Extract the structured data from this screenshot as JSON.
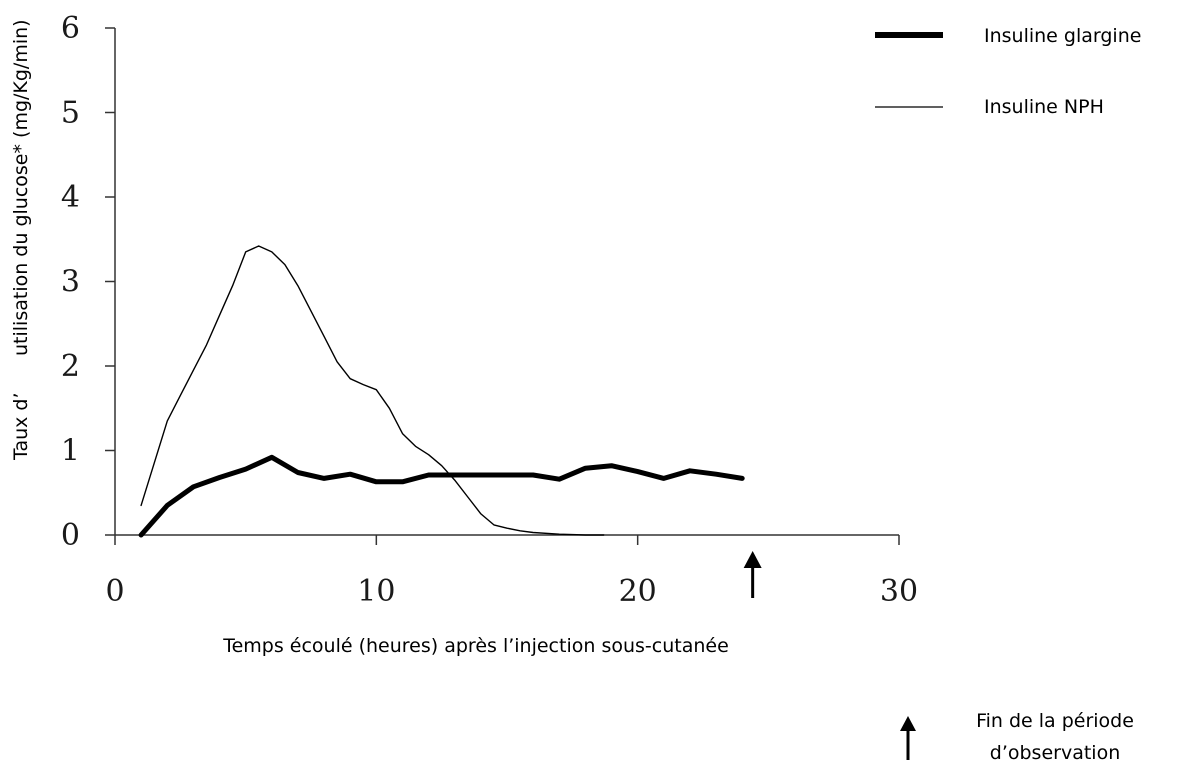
{
  "chart_data": {
    "type": "line",
    "xlabel": "Temps écoulé (heures) après l’injection sous-cutanée",
    "ylabel_part1": "Taux d’",
    "ylabel_part2": "utilisation du glucose* (mg/Kg/min)",
    "xlim": [
      0,
      30
    ],
    "ylim": [
      0,
      6
    ],
    "x_ticks": [
      0,
      10,
      20,
      30
    ],
    "y_ticks": [
      0,
      1,
      2,
      3,
      4,
      5,
      6
    ],
    "grid": false,
    "legend_position": "top-right",
    "series": [
      {
        "name": "Insuline glargine",
        "style": "thick",
        "color": "#000000",
        "x": [
          1,
          2,
          3,
          4,
          5,
          6,
          7,
          8,
          9,
          10,
          11,
          12,
          13,
          14,
          15,
          16,
          17,
          18,
          19,
          20,
          21,
          22,
          23,
          24
        ],
        "y": [
          0,
          0.35,
          0.57,
          0.68,
          0.78,
          0.92,
          0.74,
          0.67,
          0.72,
          0.63,
          0.63,
          0.71,
          0.71,
          0.71,
          0.71,
          0.71,
          0.66,
          0.79,
          0.82,
          0.75,
          0.67,
          0.76,
          0.72,
          0.67
        ]
      },
      {
        "name": "Insuline NPH",
        "style": "thin",
        "color": "#000000",
        "x": [
          1,
          1.5,
          2,
          2.5,
          3,
          3.5,
          4,
          4.5,
          5,
          5.5,
          6,
          6.5,
          7,
          7.5,
          8,
          8.5,
          9,
          9.5,
          10,
          10.5,
          11,
          11.5,
          12,
          12.5,
          13,
          13.5,
          14,
          14.5,
          15,
          15.5,
          16,
          17,
          18,
          18.7
        ],
        "y": [
          0.35,
          0.85,
          1.35,
          1.65,
          1.95,
          2.25,
          2.6,
          2.95,
          3.35,
          3.42,
          3.35,
          3.2,
          2.95,
          2.65,
          2.35,
          2.05,
          1.85,
          1.78,
          1.72,
          1.5,
          1.2,
          1.05,
          0.95,
          0.82,
          0.65,
          0.45,
          0.25,
          0.12,
          0.08,
          0.05,
          0.03,
          0.01,
          0,
          0
        ]
      }
    ],
    "observation_end": {
      "x": 24.4,
      "text_line1": "Fin de la période",
      "text_line2": "d’observation"
    }
  }
}
